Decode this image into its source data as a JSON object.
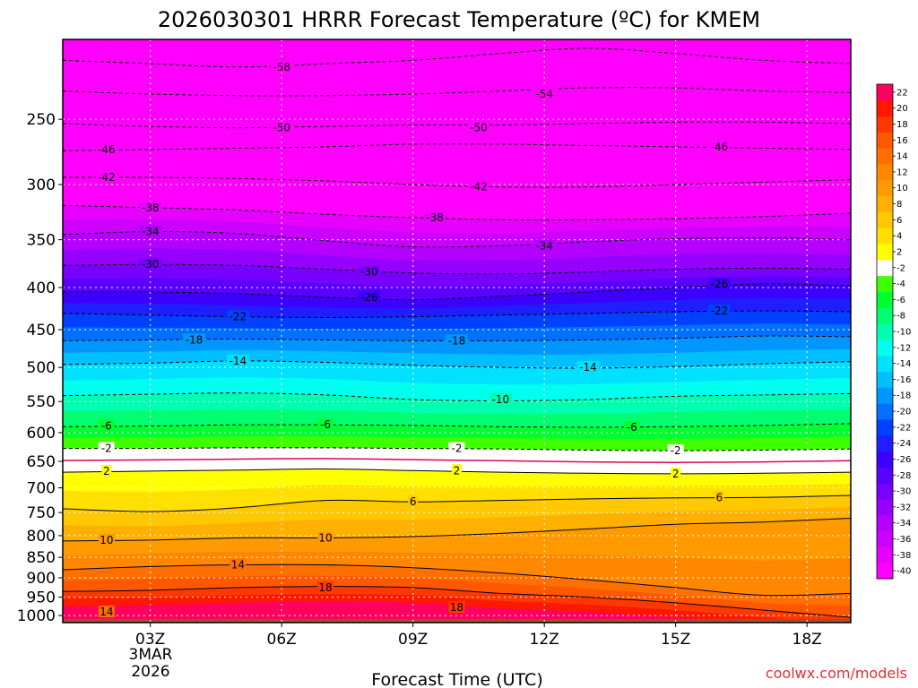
{
  "chart_data": {
    "type": "heatmap",
    "title": "2026030301 HRRR Forecast Temperature (ºC) for KMEM",
    "xlabel": "Forecast Time (UTC)",
    "credit": "coolwx.com/models",
    "x_ticks": [
      "03Z",
      "06Z",
      "09Z",
      "12Z",
      "15Z",
      "18Z"
    ],
    "x_date_label": [
      "3MAR",
      "2026"
    ],
    "x_range_hours": [
      1,
      19
    ],
    "y_ticks": [
      250,
      300,
      350,
      400,
      450,
      500,
      550,
      600,
      650,
      700,
      750,
      800,
      850,
      900,
      950,
      1000
    ],
    "y_range_hpa": [
      200,
      1020
    ],
    "y_scale": "log",
    "colorbar": {
      "levels": [
        -40,
        -38,
        -36,
        -34,
        -32,
        -30,
        -28,
        -26,
        -24,
        -22,
        -20,
        -18,
        -16,
        -14,
        -12,
        -10,
        -8,
        -6,
        -4,
        -2,
        2,
        4,
        6,
        8,
        10,
        12,
        14,
        16,
        18,
        20,
        22
      ],
      "colors": [
        "#ff00ff",
        "#e600ff",
        "#cc00ff",
        "#b400ff",
        "#9600ff",
        "#7800ff",
        "#5a00ff",
        "#3c00ff",
        "#1e1eff",
        "#0040ff",
        "#0070ff",
        "#0096ff",
        "#00bfff",
        "#00e0ff",
        "#00ffee",
        "#00ffb0",
        "#00ff70",
        "#00ff30",
        "#40ff00",
        "#ffffff",
        "#ffff00",
        "#ffe000",
        "#ffc800",
        "#ffb000",
        "#ff9a00",
        "#ff8800",
        "#ff7000",
        "#ff5800",
        "#ff3800",
        "#ff1800",
        "#ff0060"
      ]
    },
    "isotherms": [
      {
        "temp": -58,
        "p": [
          212,
          214,
          216,
          214,
          212,
          208,
          205,
          208,
          212,
          214
        ]
      },
      {
        "temp": -54,
        "p": [
          231,
          233,
          234,
          234,
          233,
          231,
          229,
          229,
          231,
          232
        ]
      },
      {
        "temp": -50,
        "p": [
          253,
          255,
          256,
          255,
          254,
          254,
          253,
          252,
          252,
          253
        ]
      },
      {
        "temp": -46,
        "p": [
          273,
          272,
          271,
          270,
          268,
          268,
          269,
          270,
          271,
          272
        ]
      },
      {
        "temp": -42,
        "p": [
          294,
          294,
          295,
          297,
          300,
          302,
          302,
          300,
          298,
          296
        ]
      },
      {
        "temp": -38,
        "p": [
          318,
          320,
          322,
          326,
          329,
          331,
          331,
          330,
          328,
          325
        ]
      },
      {
        "temp": -34,
        "p": [
          345,
          342,
          344,
          351,
          357,
          356,
          352,
          349,
          348,
          350
        ]
      },
      {
        "temp": -30,
        "p": [
          376,
          375,
          376,
          380,
          384,
          385,
          383,
          380,
          379,
          380
        ]
      },
      {
        "temp": -26,
        "p": [
          405,
          405,
          407,
          411,
          414,
          410,
          405,
          400,
          396,
          398
        ]
      },
      {
        "temp": -22,
        "p": [
          430,
          432,
          434,
          435,
          434,
          432,
          430,
          428,
          427,
          428
        ]
      },
      {
        "temp": -18,
        "p": [
          464,
          463,
          462,
          463,
          464,
          464,
          463,
          461,
          458,
          459
        ]
      },
      {
        "temp": -14,
        "p": [
          496,
          494,
          491,
          493,
          497,
          500,
          501,
          499,
          495,
          492
        ]
      },
      {
        "temp": -10,
        "p": [
          541,
          539,
          537,
          540,
          547,
          549,
          547,
          542,
          540,
          538
        ]
      },
      {
        "temp": -6,
        "p": [
          590,
          589,
          587,
          587,
          588,
          590,
          591,
          590,
          588,
          585
        ]
      },
      {
        "temp": -2,
        "p": [
          627,
          627,
          626,
          626,
          627,
          628,
          630,
          631,
          630,
          628
        ]
      },
      {
        "temp": 2,
        "p": [
          670,
          668,
          666,
          664,
          667,
          670,
          672,
          673,
          672,
          670
        ]
      },
      {
        "temp": 6,
        "p": [
          742,
          748,
          740,
          725,
          728,
          725,
          722,
          720,
          719,
          715
        ]
      },
      {
        "temp": 10,
        "p": [
          812,
          810,
          805,
          805,
          802,
          795,
          785,
          775,
          770,
          762
        ]
      },
      {
        "temp": 14,
        "p": [
          880,
          872,
          868,
          868,
          875,
          888,
          905,
          925,
          945,
          940
        ]
      },
      {
        "temp": 18,
        "p": [
          935,
          932,
          925,
          922,
          925,
          940,
          950,
          965,
          985,
          1005
        ]
      }
    ],
    "isotherm_labels": [
      {
        "text": "-58",
        "x": 6.0,
        "p": 216
      },
      {
        "text": "-54",
        "x": 12.0,
        "p": 233
      },
      {
        "text": "-50",
        "x": 6.0,
        "p": 256
      },
      {
        "text": "-50",
        "x": 10.5,
        "p": 256
      },
      {
        "text": "-46",
        "x": 2.0,
        "p": 272
      },
      {
        "text": "-46",
        "x": 16.0,
        "p": 270
      },
      {
        "text": "-42",
        "x": 2.0,
        "p": 294
      },
      {
        "text": "-42",
        "x": 10.5,
        "p": 302
      },
      {
        "text": "-38",
        "x": 3.0,
        "p": 320
      },
      {
        "text": "-38",
        "x": 9.5,
        "p": 329
      },
      {
        "text": "-34",
        "x": 3.0,
        "p": 342
      },
      {
        "text": "-34",
        "x": 12.0,
        "p": 356
      },
      {
        "text": "-30",
        "x": 3.0,
        "p": 375
      },
      {
        "text": "-30",
        "x": 8.0,
        "p": 383
      },
      {
        "text": "-26",
        "x": 8.0,
        "p": 411
      },
      {
        "text": "-26",
        "x": 16.0,
        "p": 396
      },
      {
        "text": "-22",
        "x": 5.0,
        "p": 434
      },
      {
        "text": "-22",
        "x": 16.0,
        "p": 427
      },
      {
        "text": "-18",
        "x": 4.0,
        "p": 463
      },
      {
        "text": "-18",
        "x": 10.0,
        "p": 464
      },
      {
        "text": "-14",
        "x": 5.0,
        "p": 491
      },
      {
        "text": "-14",
        "x": 13.0,
        "p": 500
      },
      {
        "text": "-10",
        "x": 11.0,
        "p": 547
      },
      {
        "text": "-6",
        "x": 2.0,
        "p": 589
      },
      {
        "text": "-6",
        "x": 7.0,
        "p": 587
      },
      {
        "text": "-6",
        "x": 14.0,
        "p": 591
      },
      {
        "text": "-2",
        "x": 2.0,
        "p": 627
      },
      {
        "text": "-2",
        "x": 10.0,
        "p": 627
      },
      {
        "text": "-2",
        "x": 15.0,
        "p": 631
      },
      {
        "text": "2",
        "x": 2.0,
        "p": 668
      },
      {
        "text": "2",
        "x": 10.0,
        "p": 667
      },
      {
        "text": "2",
        "x": 15.0,
        "p": 673
      },
      {
        "text": "6",
        "x": 9.0,
        "p": 728
      },
      {
        "text": "6",
        "x": 16.0,
        "p": 719
      },
      {
        "text": "10",
        "x": 2.0,
        "p": 810
      },
      {
        "text": "10",
        "x": 7.0,
        "p": 805
      },
      {
        "text": "14",
        "x": 5.0,
        "p": 868
      },
      {
        "text": "14",
        "x": 2.0,
        "p": 990
      },
      {
        "text": "18",
        "x": 7.0,
        "p": 925
      },
      {
        "text": "18",
        "x": 10.0,
        "p": 978
      }
    ]
  }
}
